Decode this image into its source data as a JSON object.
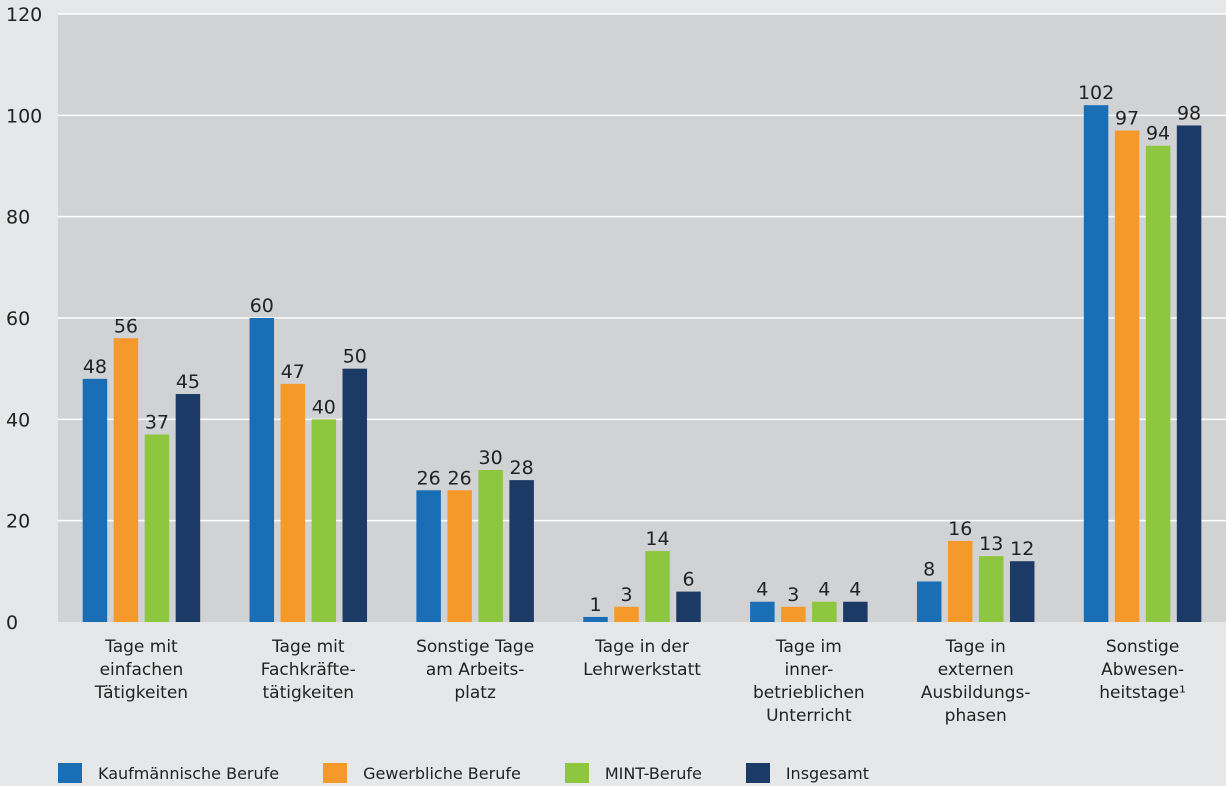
{
  "chart_data": {
    "type": "bar",
    "categories": [
      [
        "Tage mit",
        "einfachen",
        "Tätigkeiten"
      ],
      [
        "Tage mit",
        "Fachkräfte-",
        "tätigkeiten"
      ],
      [
        "Sonstige Tage",
        "am Arbeits-",
        "platz"
      ],
      [
        "Tage in der",
        "Lehrwerkstatt"
      ],
      [
        "Tage im",
        "inner-",
        "betrieblichen",
        "Unterricht"
      ],
      [
        "Tage in",
        "externen",
        "Ausbildungs-",
        "phasen"
      ],
      [
        "Sonstige",
        "Abwesen-",
        "heitstage¹"
      ]
    ],
    "series": [
      {
        "name": "Kaufmännische Berufe",
        "color": "#1a6eb5",
        "values": [
          48,
          60,
          26,
          1,
          4,
          8,
          102
        ]
      },
      {
        "name": "Gewerbliche Berufe",
        "color": "#f59a2a",
        "values": [
          56,
          47,
          26,
          3,
          3,
          16,
          97
        ]
      },
      {
        "name": "MINT-Berufe",
        "color": "#8dc63f",
        "values": [
          37,
          40,
          30,
          14,
          4,
          13,
          94
        ]
      },
      {
        "name": "Insgesamt",
        "color": "#1b3a66",
        "values": [
          45,
          50,
          28,
          6,
          4,
          12,
          98
        ]
      }
    ],
    "ylim": [
      0,
      120
    ],
    "yticks": [
      0,
      20,
      40,
      60,
      80,
      100,
      120
    ],
    "grid": true,
    "legend": "bottom"
  },
  "plot_background": "#d1d2d4",
  "page_background": "#e6e7e8",
  "gridline_color": "#ffffff"
}
